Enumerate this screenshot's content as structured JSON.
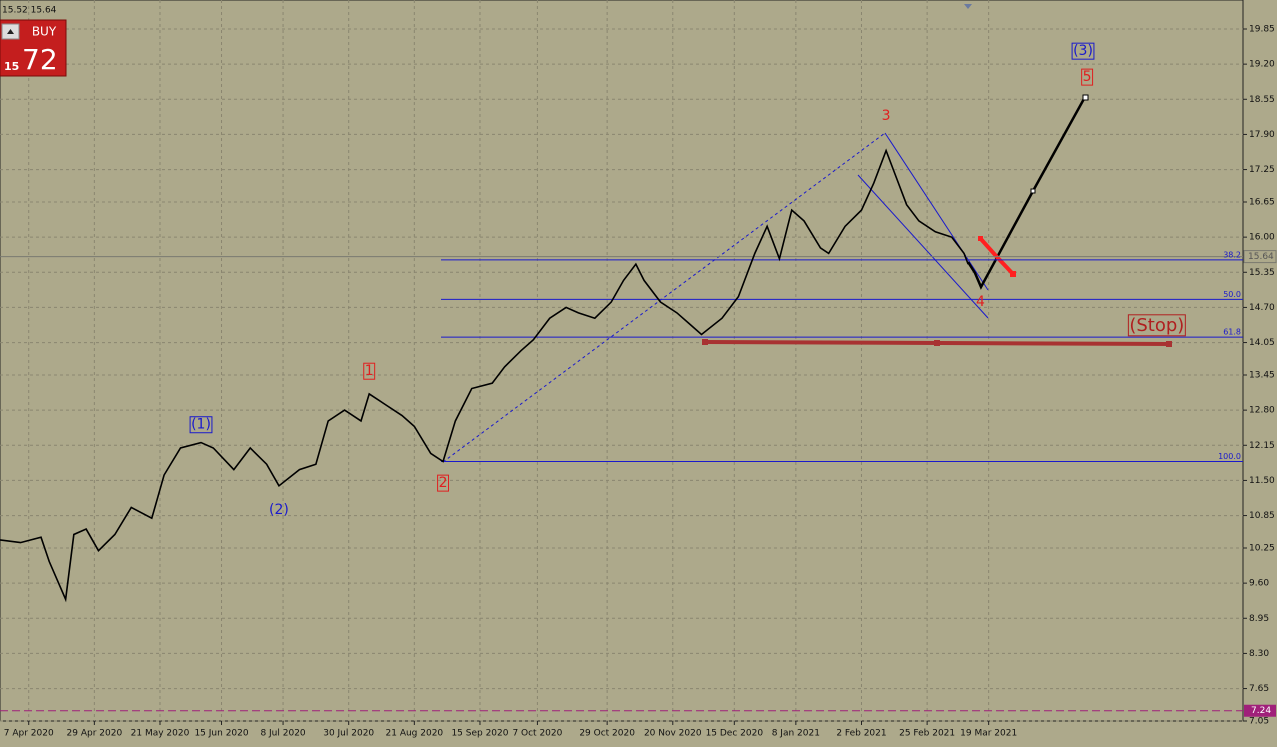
{
  "header": {
    "quote": "15.52 15.64"
  },
  "trade_panel": {
    "button": "BUY",
    "price_prefix": "15",
    "price_big": "72"
  },
  "chart_data": {
    "type": "line",
    "color": "#000000",
    "x": [
      0,
      5,
      10,
      12,
      16,
      18,
      21,
      24,
      28,
      32,
      37,
      40,
      44,
      49,
      52,
      57,
      61,
      65,
      68,
      73,
      77,
      80,
      84,
      88,
      90,
      94,
      98,
      101,
      105,
      108,
      111,
      115,
      120,
      123,
      127,
      130,
      134,
      138,
      141,
      145,
      149,
      152,
      155,
      157,
      161,
      165,
      168,
      171,
      176,
      180,
      184,
      187,
      190,
      193,
      196,
      200,
      202,
      206,
      210,
      213,
      216,
      218,
      221,
      224,
      228,
      232,
      235,
      236
    ],
    "values": [
      10.4,
      10.35,
      10.45,
      10.0,
      9.3,
      10.5,
      10.6,
      10.2,
      10.5,
      11.0,
      10.8,
      11.6,
      12.1,
      12.2,
      12.1,
      11.7,
      12.1,
      11.8,
      11.4,
      11.7,
      11.8,
      12.6,
      12.8,
      12.6,
      13.1,
      12.9,
      12.7,
      12.5,
      12.0,
      11.85,
      12.6,
      13.2,
      13.3,
      13.6,
      13.9,
      14.1,
      14.5,
      14.7,
      14.6,
      14.5,
      14.8,
      15.2,
      15.5,
      15.2,
      14.8,
      14.6,
      14.4,
      14.2,
      14.5,
      14.9,
      15.7,
      16.2,
      15.6,
      16.5,
      16.3,
      15.8,
      15.7,
      16.2,
      16.5,
      17.0,
      17.6,
      17.2,
      16.6,
      16.3,
      16.1,
      16.0,
      15.7,
      15.5
    ],
    "xlim": [
      0,
      303
    ],
    "xticks": [
      {
        "value": 7,
        "label": "7 Apr 2020"
      },
      {
        "value": 23,
        "label": "29 Apr 2020"
      },
      {
        "value": 39,
        "label": "21 May 2020"
      },
      {
        "value": 54,
        "label": "15 Jun 2020"
      },
      {
        "value": 69,
        "label": "8 Jul 2020"
      },
      {
        "value": 85,
        "label": "30 Jul 2020"
      },
      {
        "value": 101,
        "label": "21 Aug 2020"
      },
      {
        "value": 117,
        "label": "15 Sep 2020"
      },
      {
        "value": 131,
        "label": "7 Oct 2020"
      },
      {
        "value": 148,
        "label": "29 Oct 2020"
      },
      {
        "value": 164,
        "label": "20 Nov 2020"
      },
      {
        "value": 179,
        "label": "15 Dec 2020"
      },
      {
        "value": 194,
        "label": "8 Jan 2021"
      },
      {
        "value": 210,
        "label": "2 Feb 2021"
      },
      {
        "value": 226,
        "label": "25 Feb 2021"
      },
      {
        "value": 241,
        "label": "19 Mar 2021"
      }
    ],
    "ylim": [
      7.05,
      19.85
    ],
    "yticks": [
      19.85,
      {
        "value": 19.2,
        "label": "19.20"
      },
      18.55,
      {
        "value": 17.9,
        "label": "17.90"
      },
      17.25,
      16.65,
      {
        "value": 16,
        "label": "16.00"
      },
      15.35,
      {
        "value": 14.7,
        "label": "14.70"
      },
      14.05,
      13.45,
      {
        "value": 12.8,
        "label": "12.80"
      },
      12.15,
      {
        "value": 11.5,
        "label": "11.50"
      },
      10.85,
      10.25,
      {
        "value": 9.6,
        "label": "9.60"
      },
      8.95,
      {
        "value": 8.3,
        "label": "8.30"
      },
      7.65,
      7.05
    ],
    "grid": true,
    "current_price": 15.64,
    "alert_level": 7.24,
    "fib_levels": [
      {
        "ratio": "38.2",
        "price": 15.58
      },
      {
        "ratio": "50.0",
        "price": 14.85
      },
      {
        "ratio": "61.8",
        "price": 14.15
      },
      {
        "ratio": "100.0",
        "price": 11.85
      }
    ],
    "annotations": [
      {
        "text": "(1)",
        "day": 49,
        "price": 12.53,
        "color": "#1a1acc",
        "boxed": true
      },
      {
        "text": "(2)",
        "day": 68,
        "price": 10.95,
        "color": "#1a1acc",
        "boxed": false
      },
      {
        "text": "1",
        "day": 90,
        "price": 13.52,
        "color": "#e02020",
        "boxed": true
      },
      {
        "text": "2",
        "day": 108,
        "price": 11.45,
        "color": "#e02020",
        "boxed": true
      },
      {
        "text": "3",
        "day": 216,
        "price": 18.24,
        "color": "#e02020",
        "boxed": false
      },
      {
        "text": "4",
        "day": 239,
        "price": 14.8,
        "color": "#e02020",
        "boxed": false
      },
      {
        "text": "(3)",
        "day": 264,
        "price": 19.44,
        "color": "#1a1acc",
        "boxed": true
      },
      {
        "text": "5",
        "day": 265,
        "price": 18.96,
        "color": "#e02020",
        "boxed": true
      },
      {
        "text": "(Stop)",
        "day": 282,
        "price": 14.36,
        "color": "#b02020",
        "boxed": true
      }
    ]
  }
}
